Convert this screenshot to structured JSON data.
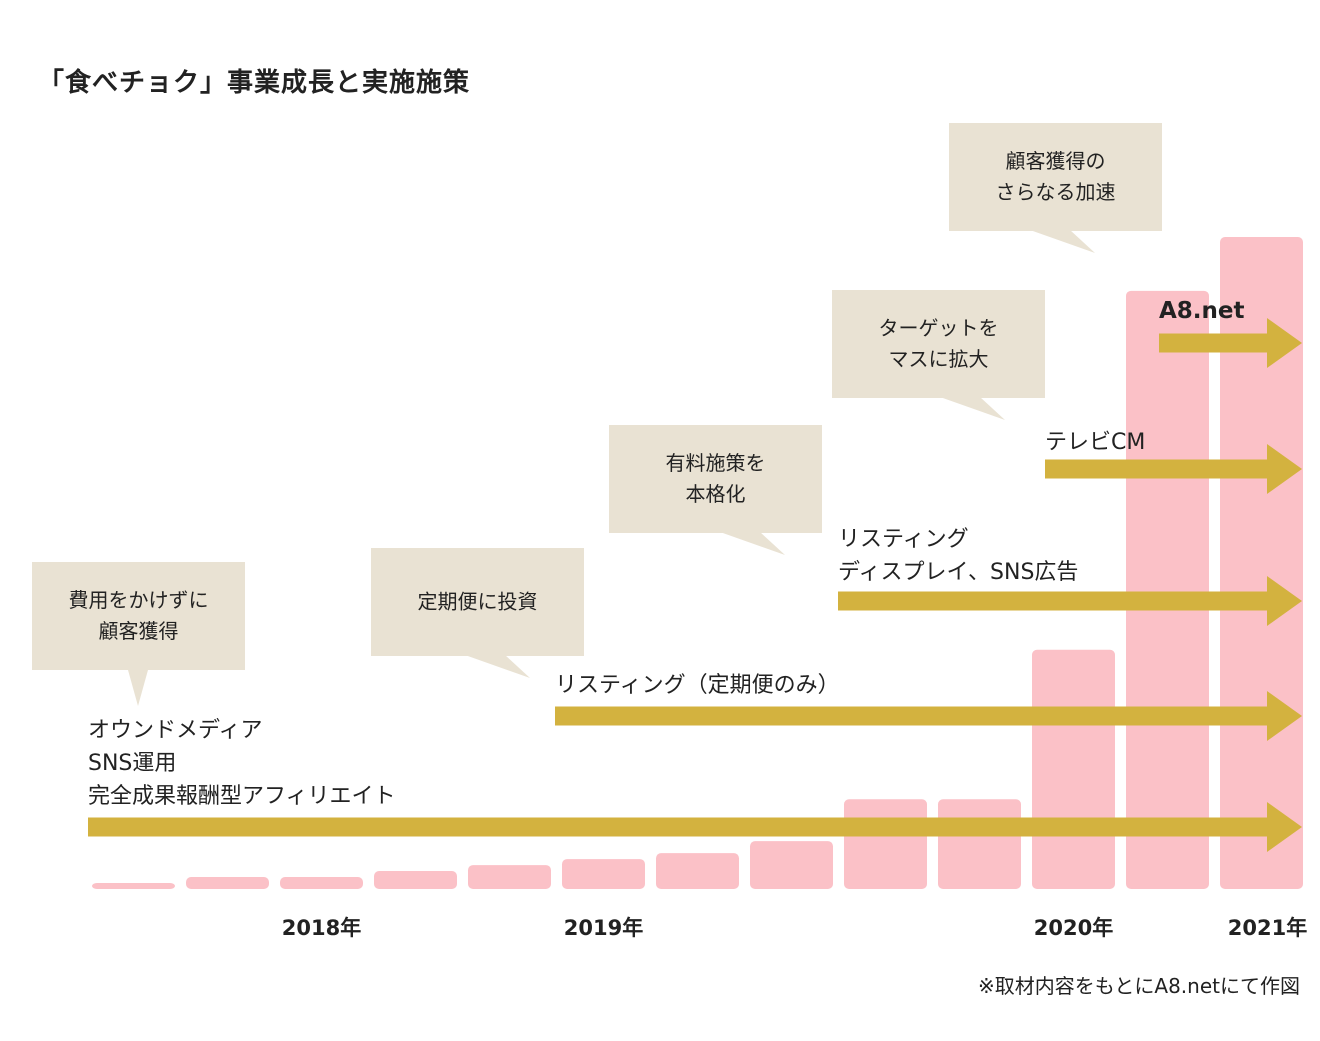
{
  "chart_data": {
    "type": "bar",
    "title": "「食べチョク」事業成長と実施施策",
    "categories": [
      "",
      "",
      "",
      "",
      "",
      "",
      "",
      "",
      "",
      "",
      "",
      "",
      ""
    ],
    "values": [
      1,
      2,
      2,
      3,
      4,
      5,
      6,
      8,
      15,
      15,
      40,
      100,
      109
    ],
    "ylim": [
      0,
      110
    ],
    "year_labels": [
      {
        "text": "2018年",
        "index": 2
      },
      {
        "text": "2019年",
        "index": 5
      },
      {
        "text": "2020年",
        "index": 10
      },
      {
        "text": "2021年",
        "index": 12
      }
    ],
    "initiatives": [
      {
        "label": "オウンドメディア\nSNS運用\n完全成果報酬型アフィリエイト",
        "start_index": 0
      },
      {
        "label": "リスティング（定期便のみ）",
        "start_index": 5
      },
      {
        "label": "リスティング\nディスプレイ、SNS広告",
        "start_index": 8
      },
      {
        "label": "テレビCM",
        "start_index": 10
      },
      {
        "label": "A8.net",
        "start_index": 11
      }
    ],
    "callouts": [
      {
        "text": "費用をかけずに\n顧客獲得"
      },
      {
        "text": "定期便に投資"
      },
      {
        "text": "有料施策を\n本格化"
      },
      {
        "text": "ターゲットを\nマスに拡大"
      },
      {
        "text": "顧客獲得の\nさらなる加速"
      }
    ],
    "note": "※取材内容をもとにA8.netにて作図"
  },
  "colors": {
    "bar": "#fbc1c7",
    "arrow": "#d3b23f",
    "callout": "#e9e2d3"
  }
}
